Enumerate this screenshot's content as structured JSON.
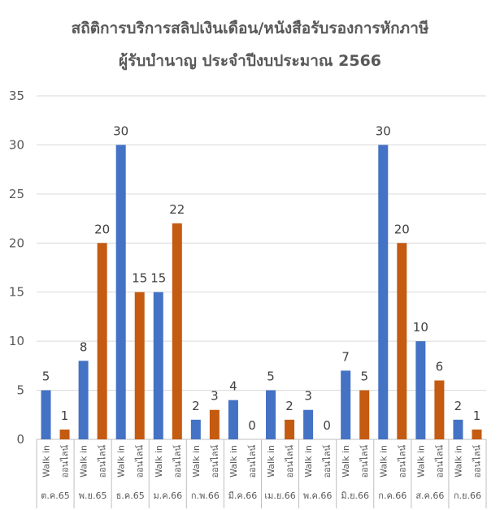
{
  "chart_data": {
    "type": "bar",
    "title": "สถิติการบริการสลิปเงินเดือน/หนังสือรับรองการหักภาษี",
    "subtitle": "ผู้รับบำนาญ ประจำปีงบประมาณ 2566",
    "ylim": [
      0,
      35
    ],
    "yticks": [
      0,
      5,
      10,
      15,
      20,
      25,
      30,
      35
    ],
    "grid": true,
    "groups": [
      "ต.ค.65",
      "พ.ย.65",
      "ธ.ค.65",
      "ม.ค.66",
      "ก.พ.66",
      "มี.ค.66",
      "เม.ย.66",
      "พ.ค.66",
      "มิ.ย.66",
      "ก.ค.66",
      "ส.ค.66",
      "ก.ย.66"
    ],
    "subcategories": [
      "Walk in",
      "ออนไลน์"
    ],
    "series": [
      {
        "values": [
          5,
          8,
          30,
          15,
          2,
          4,
          5,
          3,
          7,
          30,
          10,
          2
        ],
        "color": "#4472C4"
      },
      {
        "values": [
          1,
          20,
          15,
          22,
          3,
          0,
          2,
          0,
          5,
          20,
          6,
          1
        ],
        "color": "#C55A11"
      }
    ]
  }
}
